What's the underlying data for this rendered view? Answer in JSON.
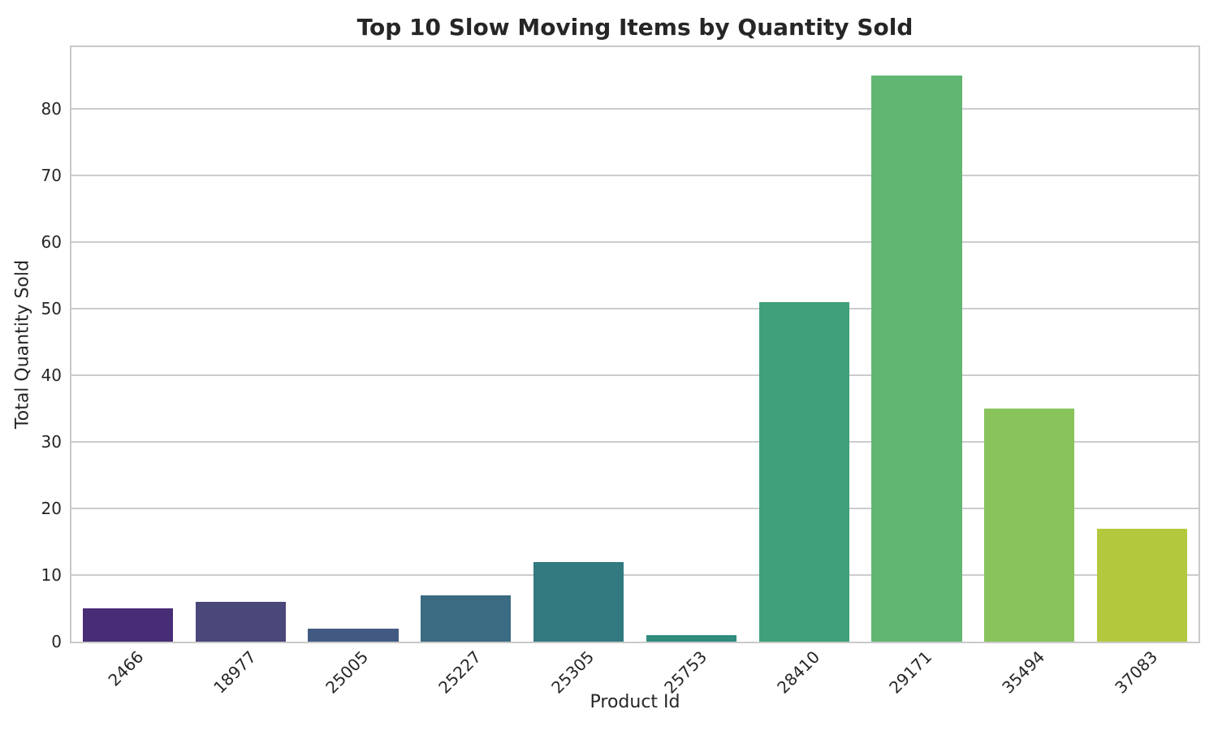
{
  "chart_data": {
    "type": "bar",
    "title": "Top 10 Slow Moving Items by Quantity Sold",
    "xlabel": "Product Id",
    "ylabel": "Total Quantity Sold",
    "categories": [
      "2466",
      "18977",
      "25005",
      "25227",
      "25305",
      "25753",
      "28410",
      "29171",
      "35494",
      "37083"
    ],
    "values": [
      5,
      6,
      2,
      7,
      12,
      1,
      51,
      85,
      35,
      17
    ],
    "yticks": [
      0,
      10,
      20,
      30,
      40,
      50,
      60,
      70,
      80
    ],
    "ylim": [
      0,
      89.25
    ],
    "grid": true,
    "legend_position": "none",
    "x_tick_rotation_deg": 45,
    "bar_width_fraction": 0.8,
    "bar_colors": [
      "#472d75",
      "#4a477b",
      "#425a81",
      "#3a6b82",
      "#327a80",
      "#318c7e",
      "#3fa079",
      "#61b671",
      "#88c35b",
      "#b3c83d"
    ],
    "colors": {
      "text": "#262626",
      "grid": "#cccccc",
      "spine": "#c9c9c9",
      "background": "#ffffff"
    }
  }
}
